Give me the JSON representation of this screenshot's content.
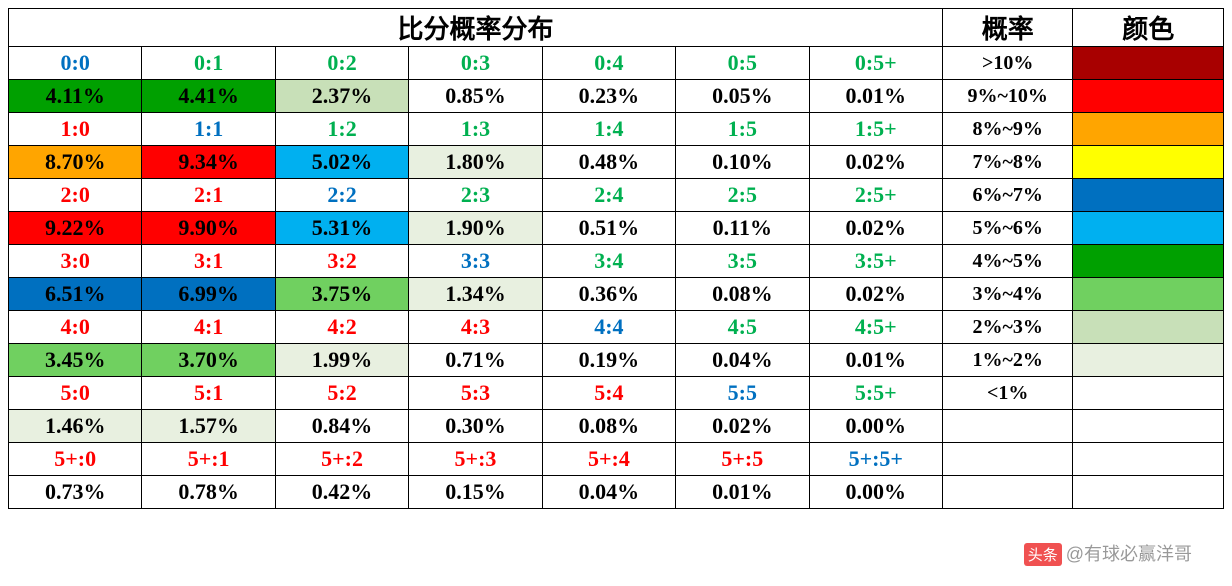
{
  "title": "比分概率分布",
  "header_prob": "概率",
  "header_color": "颜色",
  "watermark": "头条 @有球必赢洋哥",
  "column_widths": {
    "score": 133,
    "prob": 130,
    "color": 150
  },
  "colors": {
    "white": "#ffffff",
    "black": "#000000",
    "red_text": "#ff0000",
    "blue_text": "#0070c0",
    "green_text": "#00b050",
    "dark_red": "#a80000",
    "red": "#ff0000",
    "orange": "#ffa500",
    "yellow": "#ffff00",
    "blue_dark": "#0070c0",
    "blue_light": "#00b0f0",
    "green_dark": "#00a000",
    "green_med": "#70d060",
    "green_pale": "#c8e0b8",
    "green_vpale": "#e8f0e0"
  },
  "legend": [
    {
      "label": ">10%",
      "swatch": "#a80000"
    },
    {
      "label": "9%~10%",
      "swatch": "#ff0000"
    },
    {
      "label": "8%~9%",
      "swatch": "#ffa500"
    },
    {
      "label": "7%~8%",
      "swatch": "#ffff00"
    },
    {
      "label": "6%~7%",
      "swatch": "#0070c0"
    },
    {
      "label": "5%~6%",
      "swatch": "#00b0f0"
    },
    {
      "label": "4%~5%",
      "swatch": "#00a000"
    },
    {
      "label": "3%~4%",
      "swatch": "#70d060"
    },
    {
      "label": "2%~3%",
      "swatch": "#c8e0b8"
    },
    {
      "label": "1%~2%",
      "swatch": "#e8f0e0"
    },
    {
      "label": "<1%",
      "swatch": "#ffffff"
    },
    {
      "label": "",
      "swatch": "#ffffff"
    },
    {
      "label": "",
      "swatch": "#ffffff"
    },
    {
      "label": "",
      "swatch": "#ffffff"
    }
  ],
  "rows": [
    [
      {
        "t": "0:0",
        "fg": "#0070c0",
        "bg": "#ffffff"
      },
      {
        "t": "0:1",
        "fg": "#00b050",
        "bg": "#ffffff"
      },
      {
        "t": "0:2",
        "fg": "#00b050",
        "bg": "#ffffff"
      },
      {
        "t": "0:3",
        "fg": "#00b050",
        "bg": "#ffffff"
      },
      {
        "t": "0:4",
        "fg": "#00b050",
        "bg": "#ffffff"
      },
      {
        "t": "0:5",
        "fg": "#00b050",
        "bg": "#ffffff"
      },
      {
        "t": "0:5+",
        "fg": "#00b050",
        "bg": "#ffffff"
      }
    ],
    [
      {
        "t": "4.11%",
        "fg": "#000000",
        "bg": "#00a000"
      },
      {
        "t": "4.41%",
        "fg": "#000000",
        "bg": "#00a000"
      },
      {
        "t": "2.37%",
        "fg": "#000000",
        "bg": "#c8e0b8"
      },
      {
        "t": "0.85%",
        "fg": "#000000",
        "bg": "#ffffff"
      },
      {
        "t": "0.23%",
        "fg": "#000000",
        "bg": "#ffffff"
      },
      {
        "t": "0.05%",
        "fg": "#000000",
        "bg": "#ffffff"
      },
      {
        "t": "0.01%",
        "fg": "#000000",
        "bg": "#ffffff"
      }
    ],
    [
      {
        "t": "1:0",
        "fg": "#ff0000",
        "bg": "#ffffff"
      },
      {
        "t": "1:1",
        "fg": "#0070c0",
        "bg": "#ffffff"
      },
      {
        "t": "1:2",
        "fg": "#00b050",
        "bg": "#ffffff"
      },
      {
        "t": "1:3",
        "fg": "#00b050",
        "bg": "#ffffff"
      },
      {
        "t": "1:4",
        "fg": "#00b050",
        "bg": "#ffffff"
      },
      {
        "t": "1:5",
        "fg": "#00b050",
        "bg": "#ffffff"
      },
      {
        "t": "1:5+",
        "fg": "#00b050",
        "bg": "#ffffff"
      }
    ],
    [
      {
        "t": "8.70%",
        "fg": "#000000",
        "bg": "#ffa500"
      },
      {
        "t": "9.34%",
        "fg": "#000000",
        "bg": "#ff0000"
      },
      {
        "t": "5.02%",
        "fg": "#000000",
        "bg": "#00b0f0"
      },
      {
        "t": "1.80%",
        "fg": "#000000",
        "bg": "#e8f0e0"
      },
      {
        "t": "0.48%",
        "fg": "#000000",
        "bg": "#ffffff"
      },
      {
        "t": "0.10%",
        "fg": "#000000",
        "bg": "#ffffff"
      },
      {
        "t": "0.02%",
        "fg": "#000000",
        "bg": "#ffffff"
      }
    ],
    [
      {
        "t": "2:0",
        "fg": "#ff0000",
        "bg": "#ffffff"
      },
      {
        "t": "2:1",
        "fg": "#ff0000",
        "bg": "#ffffff"
      },
      {
        "t": "2:2",
        "fg": "#0070c0",
        "bg": "#ffffff"
      },
      {
        "t": "2:3",
        "fg": "#00b050",
        "bg": "#ffffff"
      },
      {
        "t": "2:4",
        "fg": "#00b050",
        "bg": "#ffffff"
      },
      {
        "t": "2:5",
        "fg": "#00b050",
        "bg": "#ffffff"
      },
      {
        "t": "2:5+",
        "fg": "#00b050",
        "bg": "#ffffff"
      }
    ],
    [
      {
        "t": "9.22%",
        "fg": "#000000",
        "bg": "#ff0000"
      },
      {
        "t": "9.90%",
        "fg": "#000000",
        "bg": "#ff0000"
      },
      {
        "t": "5.31%",
        "fg": "#000000",
        "bg": "#00b0f0"
      },
      {
        "t": "1.90%",
        "fg": "#000000",
        "bg": "#e8f0e0"
      },
      {
        "t": "0.51%",
        "fg": "#000000",
        "bg": "#ffffff"
      },
      {
        "t": "0.11%",
        "fg": "#000000",
        "bg": "#ffffff"
      },
      {
        "t": "0.02%",
        "fg": "#000000",
        "bg": "#ffffff"
      }
    ],
    [
      {
        "t": "3:0",
        "fg": "#ff0000",
        "bg": "#ffffff"
      },
      {
        "t": "3:1",
        "fg": "#ff0000",
        "bg": "#ffffff"
      },
      {
        "t": "3:2",
        "fg": "#ff0000",
        "bg": "#ffffff"
      },
      {
        "t": "3:3",
        "fg": "#0070c0",
        "bg": "#ffffff"
      },
      {
        "t": "3:4",
        "fg": "#00b050",
        "bg": "#ffffff"
      },
      {
        "t": "3:5",
        "fg": "#00b050",
        "bg": "#ffffff"
      },
      {
        "t": "3:5+",
        "fg": "#00b050",
        "bg": "#ffffff"
      }
    ],
    [
      {
        "t": "6.51%",
        "fg": "#000000",
        "bg": "#0070c0"
      },
      {
        "t": "6.99%",
        "fg": "#000000",
        "bg": "#0070c0"
      },
      {
        "t": "3.75%",
        "fg": "#000000",
        "bg": "#70d060"
      },
      {
        "t": "1.34%",
        "fg": "#000000",
        "bg": "#e8f0e0"
      },
      {
        "t": "0.36%",
        "fg": "#000000",
        "bg": "#ffffff"
      },
      {
        "t": "0.08%",
        "fg": "#000000",
        "bg": "#ffffff"
      },
      {
        "t": "0.02%",
        "fg": "#000000",
        "bg": "#ffffff"
      }
    ],
    [
      {
        "t": "4:0",
        "fg": "#ff0000",
        "bg": "#ffffff"
      },
      {
        "t": "4:1",
        "fg": "#ff0000",
        "bg": "#ffffff"
      },
      {
        "t": "4:2",
        "fg": "#ff0000",
        "bg": "#ffffff"
      },
      {
        "t": "4:3",
        "fg": "#ff0000",
        "bg": "#ffffff"
      },
      {
        "t": "4:4",
        "fg": "#0070c0",
        "bg": "#ffffff"
      },
      {
        "t": "4:5",
        "fg": "#00b050",
        "bg": "#ffffff"
      },
      {
        "t": "4:5+",
        "fg": "#00b050",
        "bg": "#ffffff"
      }
    ],
    [
      {
        "t": "3.45%",
        "fg": "#000000",
        "bg": "#70d060"
      },
      {
        "t": "3.70%",
        "fg": "#000000",
        "bg": "#70d060"
      },
      {
        "t": "1.99%",
        "fg": "#000000",
        "bg": "#e8f0e0"
      },
      {
        "t": "0.71%",
        "fg": "#000000",
        "bg": "#ffffff"
      },
      {
        "t": "0.19%",
        "fg": "#000000",
        "bg": "#ffffff"
      },
      {
        "t": "0.04%",
        "fg": "#000000",
        "bg": "#ffffff"
      },
      {
        "t": "0.01%",
        "fg": "#000000",
        "bg": "#ffffff"
      }
    ],
    [
      {
        "t": "5:0",
        "fg": "#ff0000",
        "bg": "#ffffff"
      },
      {
        "t": "5:1",
        "fg": "#ff0000",
        "bg": "#ffffff"
      },
      {
        "t": "5:2",
        "fg": "#ff0000",
        "bg": "#ffffff"
      },
      {
        "t": "5:3",
        "fg": "#ff0000",
        "bg": "#ffffff"
      },
      {
        "t": "5:4",
        "fg": "#ff0000",
        "bg": "#ffffff"
      },
      {
        "t": "5:5",
        "fg": "#0070c0",
        "bg": "#ffffff"
      },
      {
        "t": "5:5+",
        "fg": "#00b050",
        "bg": "#ffffff"
      }
    ],
    [
      {
        "t": "1.46%",
        "fg": "#000000",
        "bg": "#e8f0e0"
      },
      {
        "t": "1.57%",
        "fg": "#000000",
        "bg": "#e8f0e0"
      },
      {
        "t": "0.84%",
        "fg": "#000000",
        "bg": "#ffffff"
      },
      {
        "t": "0.30%",
        "fg": "#000000",
        "bg": "#ffffff"
      },
      {
        "t": "0.08%",
        "fg": "#000000",
        "bg": "#ffffff"
      },
      {
        "t": "0.02%",
        "fg": "#000000",
        "bg": "#ffffff"
      },
      {
        "t": "0.00%",
        "fg": "#000000",
        "bg": "#ffffff"
      }
    ],
    [
      {
        "t": "5+:0",
        "fg": "#ff0000",
        "bg": "#ffffff"
      },
      {
        "t": "5+:1",
        "fg": "#ff0000",
        "bg": "#ffffff"
      },
      {
        "t": "5+:2",
        "fg": "#ff0000",
        "bg": "#ffffff"
      },
      {
        "t": "5+:3",
        "fg": "#ff0000",
        "bg": "#ffffff"
      },
      {
        "t": "5+:4",
        "fg": "#ff0000",
        "bg": "#ffffff"
      },
      {
        "t": "5+:5",
        "fg": "#ff0000",
        "bg": "#ffffff"
      },
      {
        "t": "5+:5+",
        "fg": "#0070c0",
        "bg": "#ffffff"
      }
    ],
    [
      {
        "t": "0.73%",
        "fg": "#000000",
        "bg": "#ffffff"
      },
      {
        "t": "0.78%",
        "fg": "#000000",
        "bg": "#ffffff"
      },
      {
        "t": "0.42%",
        "fg": "#000000",
        "bg": "#ffffff"
      },
      {
        "t": "0.15%",
        "fg": "#000000",
        "bg": "#ffffff"
      },
      {
        "t": "0.04%",
        "fg": "#000000",
        "bg": "#ffffff"
      },
      {
        "t": "0.01%",
        "fg": "#000000",
        "bg": "#ffffff"
      },
      {
        "t": "0.00%",
        "fg": "#000000",
        "bg": "#ffffff"
      }
    ]
  ]
}
